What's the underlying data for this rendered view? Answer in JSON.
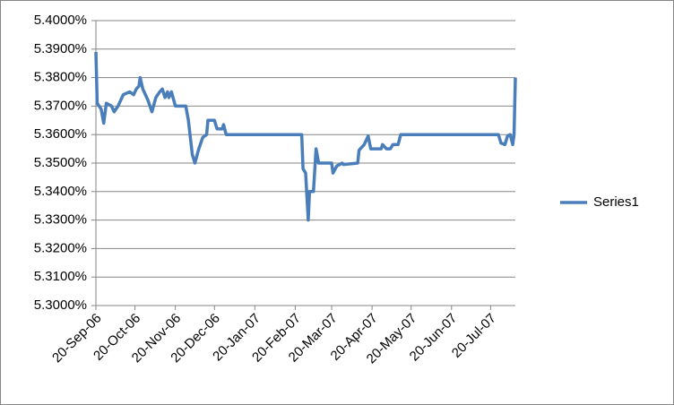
{
  "chart_data": {
    "type": "line",
    "x": [
      "2006-09-20",
      "2006-09-21",
      "2006-09-24",
      "2006-09-26",
      "2006-09-28",
      "2006-10-02",
      "2006-10-04",
      "2006-10-07",
      "2006-10-11",
      "2006-10-16",
      "2006-10-19",
      "2006-10-21",
      "2006-10-23",
      "2006-10-24",
      "2006-10-26",
      "2006-10-30",
      "2006-11-02",
      "2006-11-05",
      "2006-11-08",
      "2006-11-10",
      "2006-11-12",
      "2006-11-14",
      "2006-11-15",
      "2006-11-17",
      "2006-11-20",
      "2006-11-28",
      "2006-11-30",
      "2006-12-03",
      "2006-12-05",
      "2006-12-08",
      "2006-12-11",
      "2006-12-14",
      "2006-12-15",
      "2006-12-20",
      "2006-12-22",
      "2006-12-26",
      "2006-12-27",
      "2006-12-29",
      "2007-02-25",
      "2007-02-26",
      "2007-02-28",
      "2007-03-02",
      "2007-03-03",
      "2007-03-06",
      "2007-03-08",
      "2007-03-10",
      "2007-03-20",
      "2007-03-21",
      "2007-03-24",
      "2007-03-28",
      "2007-03-29",
      "2007-04-09",
      "2007-04-10",
      "2007-04-14",
      "2007-04-17",
      "2007-04-19",
      "2007-04-27",
      "2007-04-28",
      "2007-05-01",
      "2007-05-04",
      "2007-05-06",
      "2007-05-10",
      "2007-05-12",
      "2007-07-26",
      "2007-07-28",
      "2007-07-31",
      "2007-08-02",
      "2007-08-04",
      "2007-08-06",
      "2007-08-07",
      "2007-08-08"
    ],
    "series": [
      {
        "name": "Series1",
        "color": "#4a7ebb",
        "values": [
          5.389,
          5.371,
          5.369,
          5.364,
          5.371,
          5.37,
          5.368,
          5.37,
          5.374,
          5.375,
          5.374,
          5.376,
          5.377,
          5.38,
          5.376,
          5.372,
          5.368,
          5.373,
          5.375,
          5.376,
          5.373,
          5.375,
          5.373,
          5.375,
          5.37,
          5.37,
          5.365,
          5.353,
          5.35,
          5.355,
          5.359,
          5.36,
          5.365,
          5.365,
          5.362,
          5.362,
          5.3635,
          5.36,
          5.36,
          5.348,
          5.3465,
          5.33,
          5.34,
          5.34,
          5.355,
          5.35,
          5.35,
          5.3465,
          5.349,
          5.35,
          5.3495,
          5.35,
          5.3545,
          5.3565,
          5.3595,
          5.355,
          5.355,
          5.3565,
          5.355,
          5.355,
          5.3565,
          5.3565,
          5.36,
          5.36,
          5.357,
          5.3565,
          5.3595,
          5.36,
          5.3565,
          5.36,
          5.38
        ]
      }
    ],
    "xlim": [
      "2006-09-20",
      "2007-08-08"
    ],
    "xticks": [
      {
        "value": "2006-09-20",
        "label": "20-Sep-06"
      },
      {
        "value": "2006-10-20",
        "label": "20-Oct-06"
      },
      {
        "value": "2006-11-20",
        "label": "20-Nov-06"
      },
      {
        "value": "2006-12-20",
        "label": "20-Dec-06"
      },
      {
        "value": "2007-01-20",
        "label": "20-Jan-07"
      },
      {
        "value": "2007-02-20",
        "label": "20-Feb-07"
      },
      {
        "value": "2007-03-20",
        "label": "20-Mar-07"
      },
      {
        "value": "2007-04-20",
        "label": "20-Apr-07"
      },
      {
        "value": "2007-05-20",
        "label": "20-May-07"
      },
      {
        "value": "2007-06-20",
        "label": "20-Jun-07"
      },
      {
        "value": "2007-07-20",
        "label": "20-Jul-07"
      }
    ],
    "ylim": [
      5.3,
      5.4
    ],
    "yticks": [
      {
        "value": 5.3,
        "label": "5.3000%"
      },
      {
        "value": 5.31,
        "label": "5.3100%"
      },
      {
        "value": 5.32,
        "label": "5.3200%"
      },
      {
        "value": 5.33,
        "label": "5.3300%"
      },
      {
        "value": 5.34,
        "label": "5.3400%"
      },
      {
        "value": 5.35,
        "label": "5.3500%"
      },
      {
        "value": 5.36,
        "label": "5.3600%"
      },
      {
        "value": 5.37,
        "label": "5.3700%"
      },
      {
        "value": 5.38,
        "label": "5.3800%"
      },
      {
        "value": 5.39,
        "label": "5.3900%"
      },
      {
        "value": 5.4,
        "label": "5.4000%"
      }
    ],
    "grid": true,
    "legend": "right"
  }
}
